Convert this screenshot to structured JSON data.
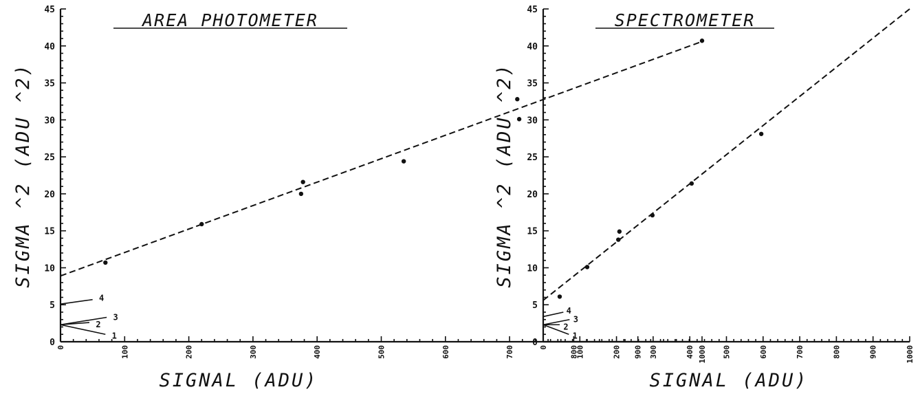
{
  "chart_data": [
    {
      "type": "scatter",
      "title": "AREA PHOTOMETER",
      "xlabel": "SIGNAL (ADU)",
      "ylabel": "SIGMA ^2 (ADU ^2)",
      "xlim": [
        0,
        1000
      ],
      "ylim": [
        0,
        45
      ],
      "xticks": [
        0,
        100,
        200,
        300,
        400,
        500,
        600,
        700,
        800,
        900,
        1000
      ],
      "yticks": [
        0,
        5,
        10,
        15,
        20,
        25,
        30,
        35,
        40,
        45
      ],
      "xtick_labels": [
        "0",
        "100",
        "200",
        "300",
        "400",
        "500",
        "600",
        "700",
        "800",
        "900",
        "1000"
      ],
      "ytick_labels": [
        "0",
        "5",
        "10",
        "15",
        "20",
        "25",
        "30",
        "35",
        "40",
        "45"
      ],
      "points": [
        {
          "x": 70,
          "y": 10.7
        },
        {
          "x": 220,
          "y": 15.9
        },
        {
          "x": 375,
          "y": 20.0
        },
        {
          "x": 378,
          "y": 21.6
        },
        {
          "x": 535,
          "y": 24.4
        },
        {
          "x": 715,
          "y": 30.1
        },
        {
          "x": 712,
          "y": 32.8
        },
        {
          "x": 1000,
          "y": 40.7
        }
      ],
      "fit_line": {
        "x": [
          0,
          1000
        ],
        "y": [
          8.9,
          40.6
        ]
      },
      "noise_lines": [
        {
          "label": "1",
          "end": [
            70,
            1.0
          ],
          "label_pos": [
            80,
            0.9
          ]
        },
        {
          "label": "2",
          "end": [
            45,
            2.6
          ],
          "label_pos": [
            55,
            2.4
          ]
        },
        {
          "label": "3",
          "end": [
            72,
            3.3
          ],
          "label_pos": [
            82,
            3.4
          ]
        },
        {
          "label": "4",
          "end": [
            50,
            5.7
          ],
          "label_pos": [
            60,
            6.0
          ]
        }
      ],
      "noise_origin": [
        0,
        2.3
      ],
      "noise_start_4": [
        0,
        5.1
      ],
      "grid": false
    },
    {
      "type": "scatter",
      "title": "SPECTROMETER",
      "xlabel": "SIGNAL (ADU)",
      "ylabel": "SIGMA ^2 (ADU ^2)",
      "xlim": [
        0,
        1000
      ],
      "ylim": [
        0,
        45
      ],
      "xticks": [
        0,
        100,
        200,
        300,
        400,
        500,
        600,
        700,
        800,
        900,
        1000
      ],
      "yticks": [
        0,
        5,
        10,
        15,
        20,
        25,
        30,
        35,
        40,
        45
      ],
      "xtick_labels": [
        "0",
        "100",
        "200",
        "300",
        "400",
        "500",
        "600",
        "700",
        "800",
        "900",
        "1000"
      ],
      "ytick_labels": [
        "0",
        "5",
        "10",
        "15",
        "20",
        "25",
        "30",
        "35",
        "40",
        "45"
      ],
      "points": [
        {
          "x": 45,
          "y": 6.1
        },
        {
          "x": 120,
          "y": 10.1
        },
        {
          "x": 205,
          "y": 13.8
        },
        {
          "x": 208,
          "y": 14.9
        },
        {
          "x": 298,
          "y": 17.1
        },
        {
          "x": 405,
          "y": 21.4
        },
        {
          "x": 595,
          "y": 28.1
        }
      ],
      "fit_line": {
        "x": [
          0,
          1000
        ],
        "y": [
          5.6,
          45.0
        ]
      },
      "noise_lines": [
        {
          "label": "1",
          "end": [
            70,
            1.0
          ],
          "label_pos": [
            80,
            0.9
          ]
        },
        {
          "label": "2",
          "end": [
            45,
            2.3
          ],
          "label_pos": [
            55,
            2.1
          ]
        },
        {
          "label": "3",
          "end": [
            72,
            3.0
          ],
          "label_pos": [
            82,
            3.1
          ]
        },
        {
          "label": "4",
          "end": [
            55,
            4.0
          ],
          "label_pos": [
            63,
            4.3
          ]
        }
      ],
      "noise_origin": [
        0,
        2.3
      ],
      "noise_start_4": [
        0,
        3.4
      ],
      "grid": false
    }
  ]
}
